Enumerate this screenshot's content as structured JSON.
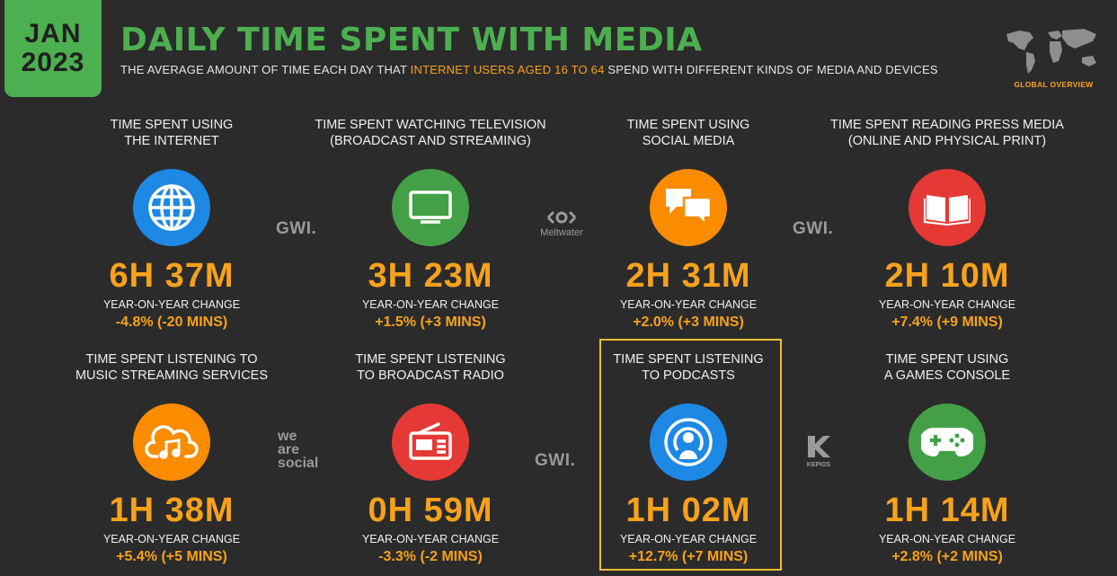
{
  "header": {
    "month": "JAN",
    "year": "2023",
    "title": "DAILY TIME SPENT WITH MEDIA",
    "subtitle_pre": "THE AVERAGE AMOUNT OF TIME EACH DAY THAT ",
    "subtitle_highlight": "INTERNET USERS AGED 16 TO 64",
    "subtitle_post": " SPEND WITH DIFFERENT KINDS OF MEDIA AND DEVICES",
    "global_label": "GLOBAL OVERVIEW"
  },
  "colors": {
    "background": "#2b2b2b",
    "accent_green": "#4caf50",
    "accent_orange": "#f7a21b",
    "highlight_yellow": "#f5c035"
  },
  "cards": [
    {
      "label_line1": "TIME SPENT USING",
      "label_line2": "THE INTERNET",
      "icon": "globe-icon",
      "icon_color": "#1e88e5",
      "value": "6H 37M",
      "change_label": "YEAR-ON-YEAR CHANGE",
      "change_value": "-4.8% (-20 MINS)"
    },
    {
      "label_line1": "TIME SPENT WATCHING TELEVISION",
      "label_line2": "(BROADCAST AND STREAMING)",
      "icon": "television-icon",
      "icon_color": "#43a047",
      "value": "3H 23M",
      "change_label": "YEAR-ON-YEAR CHANGE",
      "change_value": "+1.5% (+3 MINS)"
    },
    {
      "label_line1": "TIME SPENT USING",
      "label_line2": "SOCIAL MEDIA",
      "icon": "speech-bubbles-icon",
      "icon_color": "#fb8c00",
      "value": "2H 31M",
      "change_label": "YEAR-ON-YEAR CHANGE",
      "change_value": "+2.0% (+3 MINS)"
    },
    {
      "label_line1": "TIME SPENT READING PRESS MEDIA",
      "label_line2": "(ONLINE AND PHYSICAL PRINT)",
      "icon": "open-book-icon",
      "icon_color": "#e53935",
      "value": "2H 10M",
      "change_label": "YEAR-ON-YEAR CHANGE",
      "change_value": "+7.4% (+9 MINS)"
    },
    {
      "label_line1": "TIME SPENT LISTENING TO",
      "label_line2": "MUSIC STREAMING SERVICES",
      "icon": "music-cloud-icon",
      "icon_color": "#fb8c00",
      "value": "1H 38M",
      "change_label": "YEAR-ON-YEAR CHANGE",
      "change_value": "+5.4% (+5 MINS)"
    },
    {
      "label_line1": "TIME SPENT LISTENING",
      "label_line2": "TO BROADCAST RADIO",
      "icon": "radio-icon",
      "icon_color": "#e53935",
      "value": "0H 59M",
      "change_label": "YEAR-ON-YEAR CHANGE",
      "change_value": "-3.3% (-2 MINS)"
    },
    {
      "label_line1": "TIME SPENT LISTENING",
      "label_line2": "TO PODCASTS",
      "icon": "podcast-icon",
      "icon_color": "#1e88e5",
      "value": "1H 02M",
      "change_label": "YEAR-ON-YEAR CHANGE",
      "change_value": "+12.7% (+7 MINS)"
    },
    {
      "label_line1": "TIME SPENT USING",
      "label_line2": "A GAMES CONSOLE",
      "icon": "gamepad-icon",
      "icon_color": "#43a047",
      "value": "1H 14M",
      "change_label": "YEAR-ON-YEAR CHANGE",
      "change_value": "+2.8% (+2 MINS)"
    }
  ],
  "logos": {
    "gwi": "GWI.",
    "meltwater": "Meltwater",
    "we": "we",
    "are": "are",
    "social": "social",
    "kepios": "KEPIOS"
  }
}
